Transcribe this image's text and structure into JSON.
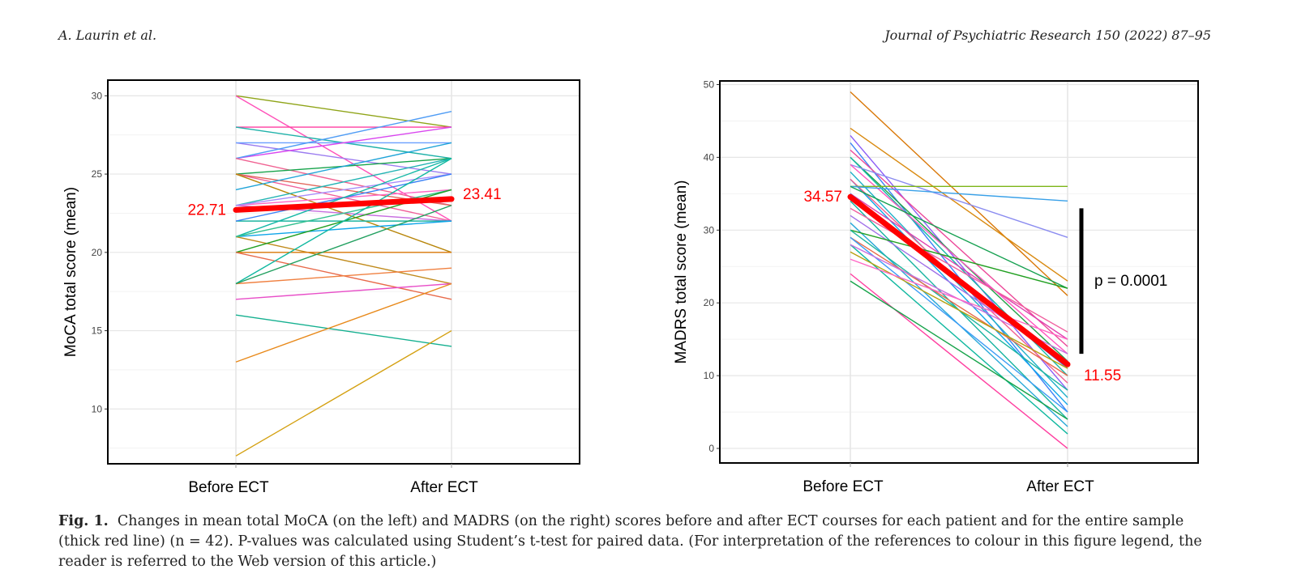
{
  "header": {
    "authors": "A. Laurin et al.",
    "journal": "Journal of Psychiatric Research 150 (2022) 87–95"
  },
  "caption": {
    "label": "Fig. 1.",
    "text": "Changes in mean total MoCA (on the left) and MADRS (on the right) scores before and after ECT courses for each patient and for the entire sample (thick red line) (n = 42). P-values was calculated using Student’s t-test for paired data. (For interpretation of the references to colour in this figure legend, the reader is referred to the Web version of this article.)"
  },
  "chart_data": [
    {
      "type": "line",
      "ylabel": "MoCA total score (mean)",
      "categories": [
        "Before ECT",
        "After ECT"
      ],
      "ylim": [
        6.5,
        31
      ],
      "yticks": [
        10,
        15,
        20,
        25,
        30
      ],
      "grid": true,
      "mean": {
        "before": 22.71,
        "after": 23.41,
        "label_before": "22.71",
        "label_after": "23.41",
        "color": "#ff0000"
      },
      "patients": [
        {
          "before": 30,
          "after": 28,
          "color": "#8fa418"
        },
        {
          "before": 30,
          "after": 22,
          "color": "#ff4fb8"
        },
        {
          "before": 28,
          "after": 28,
          "color": "#ff3fa0"
        },
        {
          "before": 28,
          "after": 26,
          "color": "#20b2aa"
        },
        {
          "before": 27,
          "after": 25,
          "color": "#9b7cf0"
        },
        {
          "before": 27,
          "after": 27,
          "color": "#6aa0ff"
        },
        {
          "before": 26,
          "after": 28,
          "color": "#d946ef"
        },
        {
          "before": 26,
          "after": 29,
          "color": "#4f9cf5"
        },
        {
          "before": 26,
          "after": 23,
          "color": "#f06292"
        },
        {
          "before": 25,
          "after": 26,
          "color": "#16a34a"
        },
        {
          "before": 25,
          "after": 22,
          "color": "#f0609a"
        },
        {
          "before": 25,
          "after": 23,
          "color": "#e3665c"
        },
        {
          "before": 25,
          "after": 20,
          "color": "#b8860b"
        },
        {
          "before": 24,
          "after": 27,
          "color": "#20a4d8"
        },
        {
          "before": 23,
          "after": 26,
          "color": "#22b3b3"
        },
        {
          "before": 23,
          "after": 22,
          "color": "#c86fe0"
        },
        {
          "before": 23,
          "after": 24,
          "color": "#ff66c4"
        },
        {
          "before": 23,
          "after": 25,
          "color": "#a78bfa"
        },
        {
          "before": 22,
          "after": 22,
          "color": "#1fb5a0"
        },
        {
          "before": 22,
          "after": 25,
          "color": "#3b82f6"
        },
        {
          "before": 21,
          "after": 26,
          "color": "#14b8a6"
        },
        {
          "before": 21,
          "after": 22,
          "color": "#0ea5e9"
        },
        {
          "before": 21,
          "after": 18,
          "color": "#c08a1a"
        },
        {
          "before": 21,
          "after": 24,
          "color": "#34c090"
        },
        {
          "before": 20,
          "after": 20,
          "color": "#d97706"
        },
        {
          "before": 20,
          "after": 24,
          "color": "#22a022"
        },
        {
          "before": 20,
          "after": 17,
          "color": "#e86a4a"
        },
        {
          "before": 18,
          "after": 19,
          "color": "#f08040"
        },
        {
          "before": 18,
          "after": 26,
          "color": "#10b8a0"
        },
        {
          "before": 18,
          "after": 23,
          "color": "#22a060"
        },
        {
          "before": 17,
          "after": 18,
          "color": "#e84fc8"
        },
        {
          "before": 16,
          "after": 14,
          "color": "#15b090"
        },
        {
          "before": 13,
          "after": 18,
          "color": "#e8891a"
        },
        {
          "before": 7,
          "after": 15,
          "color": "#d4a010"
        }
      ]
    },
    {
      "type": "line",
      "ylabel": "MADRS total score (mean)",
      "categories": [
        "Before ECT",
        "After ECT"
      ],
      "ylim": [
        -2,
        50.5
      ],
      "yticks": [
        0,
        10,
        20,
        30,
        40,
        50
      ],
      "grid": true,
      "mean": {
        "before": 34.57,
        "after": 11.55,
        "label_before": "34.57",
        "label_after": "11.55",
        "color": "#ff0000"
      },
      "annotation": {
        "text": "p = 0.0001",
        "bar_from": 13,
        "bar_to": 33
      },
      "patients": [
        {
          "before": 49,
          "after": 21,
          "color": "#d97706"
        },
        {
          "before": 44,
          "after": 23,
          "color": "#d98a10"
        },
        {
          "before": 43,
          "after": 8,
          "color": "#8b5cf6"
        },
        {
          "before": 42,
          "after": 5,
          "color": "#3b82f6"
        },
        {
          "before": 41,
          "after": 14,
          "color": "#ec4899"
        },
        {
          "before": 40,
          "after": 12,
          "color": "#22a34a"
        },
        {
          "before": 40,
          "after": 10,
          "color": "#14b8a6"
        },
        {
          "before": 39,
          "after": 29,
          "color": "#8b8cf0"
        },
        {
          "before": 39,
          "after": 13,
          "color": "#ff55c0"
        },
        {
          "before": 38,
          "after": 7,
          "color": "#20b0c8"
        },
        {
          "before": 37,
          "after": 6,
          "color": "#0ea5e9"
        },
        {
          "before": 37,
          "after": 9,
          "color": "#f06292"
        },
        {
          "before": 36,
          "after": 36,
          "color": "#7cb518"
        },
        {
          "before": 36,
          "after": 34,
          "color": "#38a0e8"
        },
        {
          "before": 36,
          "after": 22,
          "color": "#15a050"
        },
        {
          "before": 35,
          "after": 15,
          "color": "#e040b0"
        },
        {
          "before": 35,
          "after": 11,
          "color": "#4d7cf0"
        },
        {
          "before": 34,
          "after": 4,
          "color": "#16b3a0"
        },
        {
          "before": 33,
          "after": 16,
          "color": "#f060a0"
        },
        {
          "before": 32,
          "after": 12,
          "color": "#a070e8"
        },
        {
          "before": 31,
          "after": 3,
          "color": "#28a8d8"
        },
        {
          "before": 30,
          "after": 22,
          "color": "#22a022"
        },
        {
          "before": 30,
          "after": 8,
          "color": "#1fb5a0"
        },
        {
          "before": 29,
          "after": 10,
          "color": "#e86a4a"
        },
        {
          "before": 29,
          "after": 5,
          "color": "#3b9cf5"
        },
        {
          "before": 28,
          "after": 2,
          "color": "#10b8a0"
        },
        {
          "before": 28,
          "after": 13,
          "color": "#c86fe0"
        },
        {
          "before": 27,
          "after": 11,
          "color": "#b8a010"
        },
        {
          "before": 26,
          "after": 15,
          "color": "#ff66c4"
        },
        {
          "before": 24,
          "after": 0,
          "color": "#ff3fa0"
        },
        {
          "before": 23,
          "after": 4,
          "color": "#16a34a"
        }
      ]
    }
  ]
}
